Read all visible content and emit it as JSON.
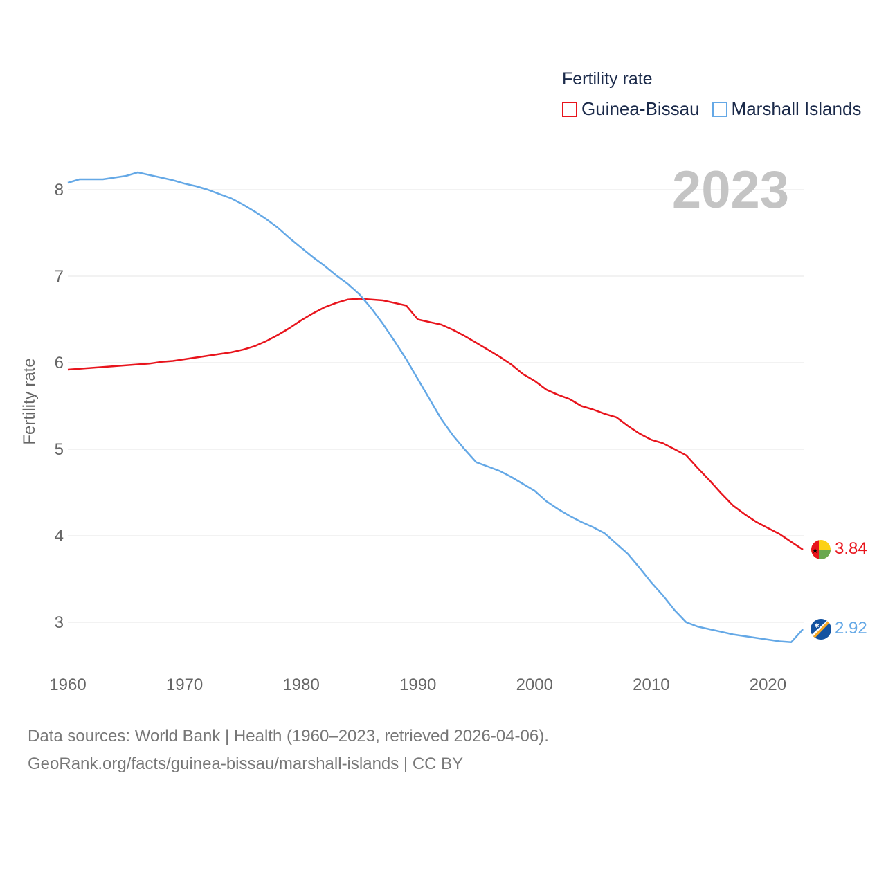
{
  "legend": {
    "title": "Fertility rate",
    "items": [
      {
        "name": "Guinea-Bissau",
        "color": "#e8141c"
      },
      {
        "name": "Marshall Islands",
        "color": "#64a8e6"
      }
    ]
  },
  "year_label": "2023",
  "source": {
    "line1": "Data sources: World Bank | Health (1960–2023, retrieved 2026-04-06).",
    "line2": "GeoRank.org/facts/guinea-bissau/marshall-islands | CC BY"
  },
  "chart_data": {
    "type": "line",
    "title": "Fertility rate",
    "xlabel": "",
    "ylabel": "Fertility rate",
    "xlim": [
      1960,
      2023
    ],
    "ylim": [
      2.5,
      8.3
    ],
    "xticks": [
      1960,
      1970,
      1980,
      1990,
      2000,
      2010,
      2020
    ],
    "yticks": [
      3,
      4,
      5,
      6,
      7,
      8
    ],
    "grid": true,
    "legend_position": "top-right",
    "x": [
      1960,
      1961,
      1962,
      1963,
      1964,
      1965,
      1966,
      1967,
      1968,
      1969,
      1970,
      1971,
      1972,
      1973,
      1974,
      1975,
      1976,
      1977,
      1978,
      1979,
      1980,
      1981,
      1982,
      1983,
      1984,
      1985,
      1986,
      1987,
      1988,
      1989,
      1990,
      1991,
      1992,
      1993,
      1994,
      1995,
      1996,
      1997,
      1998,
      1999,
      2000,
      2001,
      2002,
      2003,
      2004,
      2005,
      2006,
      2007,
      2008,
      2009,
      2010,
      2011,
      2012,
      2013,
      2014,
      2015,
      2016,
      2017,
      2018,
      2019,
      2020,
      2021,
      2022,
      2023
    ],
    "series": [
      {
        "name": "Guinea-Bissau",
        "color": "#e8141c",
        "end_label": "3.84",
        "values": [
          5.92,
          5.93,
          5.94,
          5.95,
          5.96,
          5.97,
          5.98,
          5.99,
          6.01,
          6.02,
          6.04,
          6.06,
          6.08,
          6.1,
          6.12,
          6.15,
          6.19,
          6.25,
          6.32,
          6.4,
          6.49,
          6.57,
          6.64,
          6.69,
          6.73,
          6.74,
          6.73,
          6.72,
          6.69,
          6.66,
          6.5,
          6.47,
          6.44,
          6.38,
          6.31,
          6.23,
          6.15,
          6.07,
          5.98,
          5.87,
          5.79,
          5.69,
          5.63,
          5.58,
          5.5,
          5.46,
          5.41,
          5.37,
          5.27,
          5.18,
          5.11,
          5.07,
          5.0,
          4.93,
          4.78,
          4.64,
          4.49,
          4.35,
          4.25,
          4.16,
          4.09,
          4.02,
          3.93,
          3.84
        ]
      },
      {
        "name": "Marshall Islands",
        "color": "#64a8e6",
        "end_label": "2.92",
        "values": [
          8.08,
          8.12,
          8.12,
          8.12,
          8.14,
          8.16,
          8.2,
          8.17,
          8.14,
          8.11,
          8.07,
          8.04,
          8.0,
          7.95,
          7.9,
          7.83,
          7.75,
          7.66,
          7.56,
          7.44,
          7.33,
          7.22,
          7.12,
          7.01,
          6.91,
          6.79,
          6.63,
          6.45,
          6.25,
          6.04,
          5.81,
          5.58,
          5.35,
          5.16,
          5.0,
          4.85,
          4.8,
          4.75,
          4.68,
          4.6,
          4.52,
          4.4,
          4.31,
          4.23,
          4.16,
          4.1,
          4.03,
          3.91,
          3.79,
          3.63,
          3.46,
          3.31,
          3.14,
          3.0,
          2.95,
          2.92,
          2.89,
          2.86,
          2.84,
          2.82,
          2.8,
          2.78,
          2.77,
          2.92
        ]
      }
    ]
  }
}
